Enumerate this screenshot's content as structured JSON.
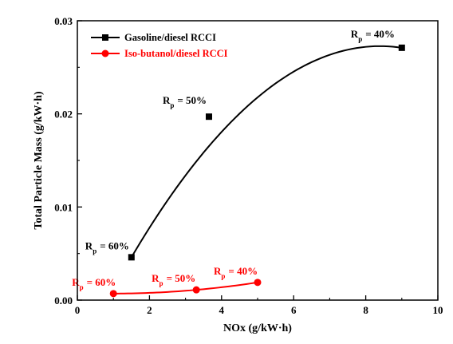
{
  "chart_data": {
    "type": "scatter",
    "xlabel": "NOx (g/kW·h)",
    "ylabel": "Total Particle Mass (g/kW·h)",
    "xlim": [
      0,
      10
    ],
    "ylim": [
      0,
      0.03
    ],
    "x_ticks": [
      "0",
      "2",
      "4",
      "6",
      "8",
      "10"
    ],
    "y_ticks": [
      "0.00",
      "0.01",
      "0.02",
      "0.03"
    ],
    "legend_position": "top-left",
    "grid": false,
    "series": [
      {
        "name": "Gasoline/diesel RCCI",
        "color": "#000000",
        "marker": "square",
        "x": [
          1.5,
          3.65,
          9.0
        ],
        "y": [
          0.0046,
          0.0197,
          0.0271
        ],
        "labels": [
          "R",
          "R",
          "R"
        ],
        "label_subs": [
          "p",
          "p",
          "p"
        ],
        "label_values": [
          "= 60%",
          "= 50%",
          "= 40%"
        ]
      },
      {
        "name": "Iso-butanol/diesel RCCI",
        "color": "#ff0000",
        "marker": "circle",
        "x": [
          1.0,
          3.3,
          5.0
        ],
        "y": [
          0.0007,
          0.0011,
          0.0019
        ],
        "labels": [
          "R",
          "R",
          "R"
        ],
        "label_subs": [
          "p",
          "p",
          "p"
        ],
        "label_values": [
          "= 60%",
          "= 50%",
          "= 40%"
        ]
      }
    ]
  }
}
